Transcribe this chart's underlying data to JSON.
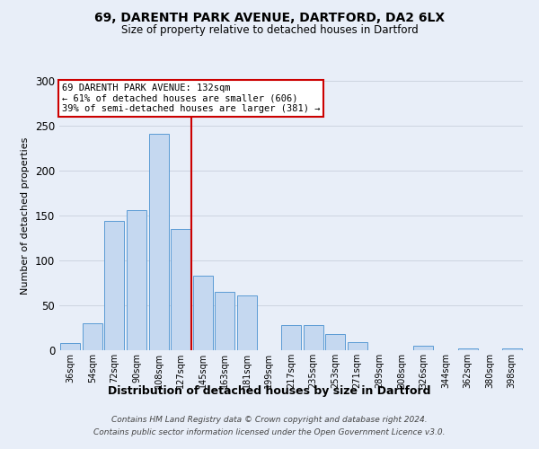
{
  "title": "69, DARENTH PARK AVENUE, DARTFORD, DA2 6LX",
  "subtitle": "Size of property relative to detached houses in Dartford",
  "xlabel": "Distribution of detached houses by size in Dartford",
  "ylabel": "Number of detached properties",
  "bar_labels": [
    "36sqm",
    "54sqm",
    "72sqm",
    "90sqm",
    "108sqm",
    "127sqm",
    "145sqm",
    "163sqm",
    "181sqm",
    "199sqm",
    "217sqm",
    "235sqm",
    "253sqm",
    "271sqm",
    "289sqm",
    "308sqm",
    "326sqm",
    "344sqm",
    "362sqm",
    "380sqm",
    "398sqm"
  ],
  "bar_values": [
    8,
    30,
    144,
    156,
    241,
    135,
    83,
    65,
    61,
    0,
    28,
    28,
    18,
    9,
    0,
    0,
    5,
    0,
    2,
    0,
    2
  ],
  "bar_color": "#c5d8f0",
  "bar_edge_color": "#5b9bd5",
  "ref_line_color": "#cc0000",
  "annotation_title": "69 DARENTH PARK AVENUE: 132sqm",
  "annotation_line1": "← 61% of detached houses are smaller (606)",
  "annotation_line2": "39% of semi-detached houses are larger (381) →",
  "annotation_box_color": "#cc0000",
  "ylim": [
    0,
    300
  ],
  "yticks": [
    0,
    50,
    100,
    150,
    200,
    250,
    300
  ],
  "footer_line1": "Contains HM Land Registry data © Crown copyright and database right 2024.",
  "footer_line2": "Contains public sector information licensed under the Open Government Licence v3.0.",
  "bg_color": "#e8eef8"
}
